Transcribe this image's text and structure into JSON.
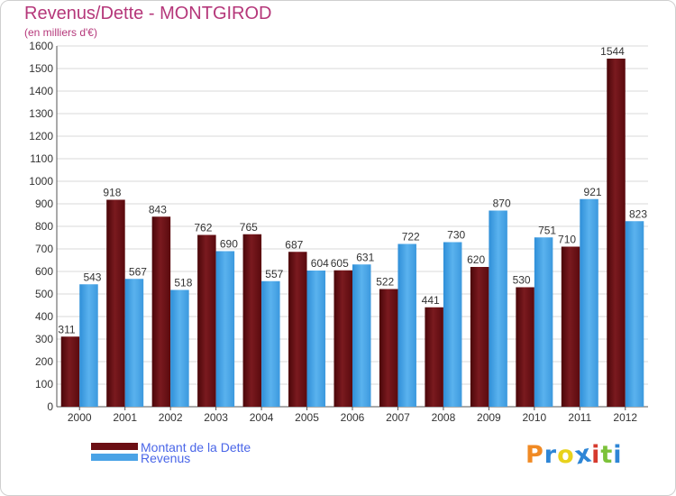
{
  "header": {
    "title": "Revenus/Dette - MONTGIROD",
    "subtitle": "(en milliers d'€)"
  },
  "logo": {
    "letters": [
      "P",
      "r",
      "o",
      "x",
      "i",
      "t",
      "i"
    ],
    "colors": [
      "#f08a24",
      "#2e86d6",
      "#e8d21c",
      "#2e86d6",
      "#d63a2e",
      "#7cc23a",
      "#2e86d6"
    ]
  },
  "chart_data": {
    "type": "bar",
    "categories": [
      "2000",
      "2001",
      "2002",
      "2003",
      "2004",
      "2005",
      "2006",
      "2007",
      "2008",
      "2009",
      "2010",
      "2011",
      "2012"
    ],
    "series": [
      {
        "name": "Montant de la Dette",
        "color": "#6b0f14",
        "values": [
          311,
          918,
          843,
          762,
          765,
          687,
          605,
          522,
          441,
          620,
          530,
          710,
          1544
        ]
      },
      {
        "name": "Revenus",
        "color": "#4aa3e6",
        "values": [
          543,
          567,
          518,
          690,
          557,
          604,
          631,
          722,
          730,
          870,
          751,
          921,
          823
        ]
      }
    ],
    "ylim": [
      0,
      1600
    ],
    "yticks": [
      0,
      100,
      200,
      300,
      400,
      500,
      600,
      700,
      800,
      900,
      1000,
      1100,
      1200,
      1300,
      1400,
      1500,
      1600
    ],
    "grid": true,
    "legend": "bottom-left"
  }
}
